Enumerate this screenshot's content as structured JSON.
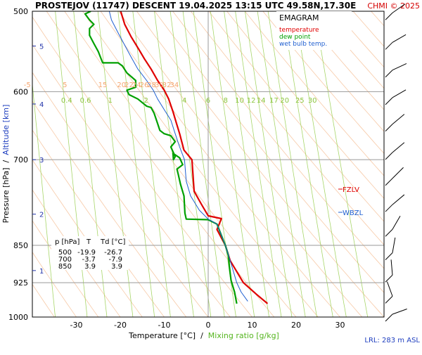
{
  "header": {
    "title": "PROSTEJOV (11747)   DESCENT   19.04.2025 13:15 UTC  49.58N,17.30E",
    "copyright": "CHMI © 2025"
  },
  "legend": {
    "heading": "EMAGRAM",
    "items": [
      {
        "label": "temperature",
        "color": "#e00000"
      },
      {
        "label": "dew point",
        "color": "#00a000"
      },
      {
        "label": "wet bulb temp.",
        "color": "#1f5fd0"
      }
    ]
  },
  "axes": {
    "ylabel_left": "Pressure [hPa]",
    "ylabel_sep": "  /  ",
    "ylabel_right": "Altitude [km]",
    "xlabel_left": "Temperature [°C]",
    "xlabel_sep": "  /  ",
    "xlabel_right": "Mixing ratio [g/kg]"
  },
  "levels": {
    "fzlv": "FZLV",
    "wbzl": "WBZL"
  },
  "lrl": "LRL: 283 m ASL",
  "table": {
    "headers": [
      "p [hPa]",
      "T",
      "Td [°C]"
    ],
    "rows": [
      [
        "500",
        "-19.9",
        "-26.7"
      ],
      [
        "700",
        "-3.7",
        "-7.9"
      ],
      [
        "850",
        "3.9",
        "3.9"
      ]
    ]
  },
  "chart_data": {
    "type": "line",
    "title": "EMAGRAM",
    "xlabel": "Temperature [°C]  /  Mixing ratio [g/kg]",
    "ylabel": "Pressure [hPa]  /  Altitude [km]",
    "xlim": [
      -40,
      40
    ],
    "ylim": [
      1000,
      500
    ],
    "y_scale": "log",
    "x_ticks": [
      "-30",
      "-20",
      "-10",
      "0",
      "10",
      "20",
      "30"
    ],
    "y_ticks": [
      "500",
      "600",
      "700",
      "850",
      "925",
      "1000"
    ],
    "altitude_ticks": [
      {
        "km": "1",
        "p": 900
      },
      {
        "km": "2",
        "p": 792
      },
      {
        "km": "3",
        "p": 700
      },
      {
        "km": "4",
        "p": 617
      },
      {
        "km": "5",
        "p": 541
      }
    ],
    "mixing_ratio_labels": [
      "0.4",
      "0.6",
      "1",
      "2",
      "4",
      "6",
      "8",
      "10",
      "12",
      "14",
      "17",
      "20",
      "25",
      "30"
    ],
    "dry_adiabat_labels": [
      "-5",
      "5",
      "15",
      "20",
      "22",
      "24",
      "26",
      "28",
      "30",
      "32",
      "34"
    ],
    "series": [
      {
        "name": "temperature",
        "color": "#e00000",
        "points": [
          [
            13.5,
            970
          ],
          [
            11,
            950
          ],
          [
            8,
            925
          ],
          [
            5,
            880
          ],
          [
            3.9,
            850
          ],
          [
            2,
            820
          ],
          [
            3,
            800
          ],
          [
            0,
            795
          ],
          [
            -1.5,
            775
          ],
          [
            -3.2,
            752
          ],
          [
            -3.7,
            700
          ],
          [
            -5.5,
            685
          ],
          [
            -6.5,
            660
          ],
          [
            -7.2,
            645
          ],
          [
            -8,
            628
          ],
          [
            -9,
            610
          ],
          [
            -10,
            598
          ],
          [
            -11.5,
            585
          ],
          [
            -13,
            570
          ],
          [
            -14.5,
            557
          ],
          [
            -15.8,
            545
          ],
          [
            -17.5,
            530
          ],
          [
            -19,
            515
          ],
          [
            -19.9,
            500
          ]
        ]
      },
      {
        "name": "dew point",
        "color": "#00a000",
        "points": [
          [
            6.5,
            970
          ],
          [
            6,
            945
          ],
          [
            5.2,
            920
          ],
          [
            4.8,
            890
          ],
          [
            4.6,
            870
          ],
          [
            3.9,
            850
          ],
          [
            2,
            810
          ],
          [
            0,
            802
          ],
          [
            -5,
            801
          ],
          [
            -5.3,
            790
          ],
          [
            -5.5,
            760
          ],
          [
            -6.3,
            740
          ],
          [
            -6.8,
            724
          ],
          [
            -7.1,
            715
          ],
          [
            -5.8,
            708
          ],
          [
            -6.5,
            697
          ],
          [
            -8,
            690
          ],
          [
            -7.9,
            700
          ],
          [
            -7.5,
            695
          ],
          [
            -8.5,
            680
          ],
          [
            -7.5,
            672
          ],
          [
            -8.5,
            663
          ],
          [
            -10,
            660
          ],
          [
            -11,
            655
          ],
          [
            -11.5,
            645
          ],
          [
            -12.3,
            630
          ],
          [
            -13,
            622
          ],
          [
            -14,
            620
          ],
          [
            -16,
            610
          ],
          [
            -18,
            604
          ],
          [
            -18.5,
            598
          ],
          [
            -16.5,
            594
          ],
          [
            -16.5,
            585
          ],
          [
            -18.5,
            575
          ],
          [
            -19.5,
            566
          ],
          [
            -20.5,
            562
          ],
          [
            -24,
            562
          ],
          [
            -24.5,
            555
          ],
          [
            -25,
            548
          ],
          [
            -26,
            538
          ],
          [
            -27,
            528
          ],
          [
            -27,
            520
          ],
          [
            -26,
            515
          ],
          [
            -27,
            510
          ],
          [
            -28,
            503
          ],
          [
            -26.7,
            500
          ]
        ]
      },
      {
        "name": "wet bulb temp.",
        "color": "#1f5fd0",
        "points": [
          [
            9,
            965
          ],
          [
            7.5,
            945
          ],
          [
            6.5,
            925
          ],
          [
            5,
            880
          ],
          [
            3.9,
            850
          ],
          [
            2,
            810
          ],
          [
            0,
            801
          ],
          [
            -2,
            785
          ],
          [
            -4,
            760
          ],
          [
            -5,
            735
          ],
          [
            -5.4,
            700
          ],
          [
            -6.5,
            680
          ],
          [
            -7.5,
            660
          ],
          [
            -8.5,
            640
          ],
          [
            -10,
            625
          ],
          [
            -11.5,
            610
          ],
          [
            -12.5,
            598
          ],
          [
            -14,
            585
          ],
          [
            -16,
            570
          ],
          [
            -17.5,
            555
          ],
          [
            -19,
            540
          ],
          [
            -20.5,
            525
          ],
          [
            -22,
            510
          ],
          [
            -22.5,
            500
          ]
        ]
      }
    ],
    "wind_barbs": [
      {
        "p": 505
      },
      {
        "p": 540
      },
      {
        "p": 575
      },
      {
        "p": 612
      },
      {
        "p": 650
      },
      {
        "p": 693
      },
      {
        "p": 735
      },
      {
        "p": 780
      },
      {
        "p": 825
      },
      {
        "p": 870
      },
      {
        "p": 915
      },
      {
        "p": 960
      },
      {
        "p": 1000
      }
    ]
  }
}
